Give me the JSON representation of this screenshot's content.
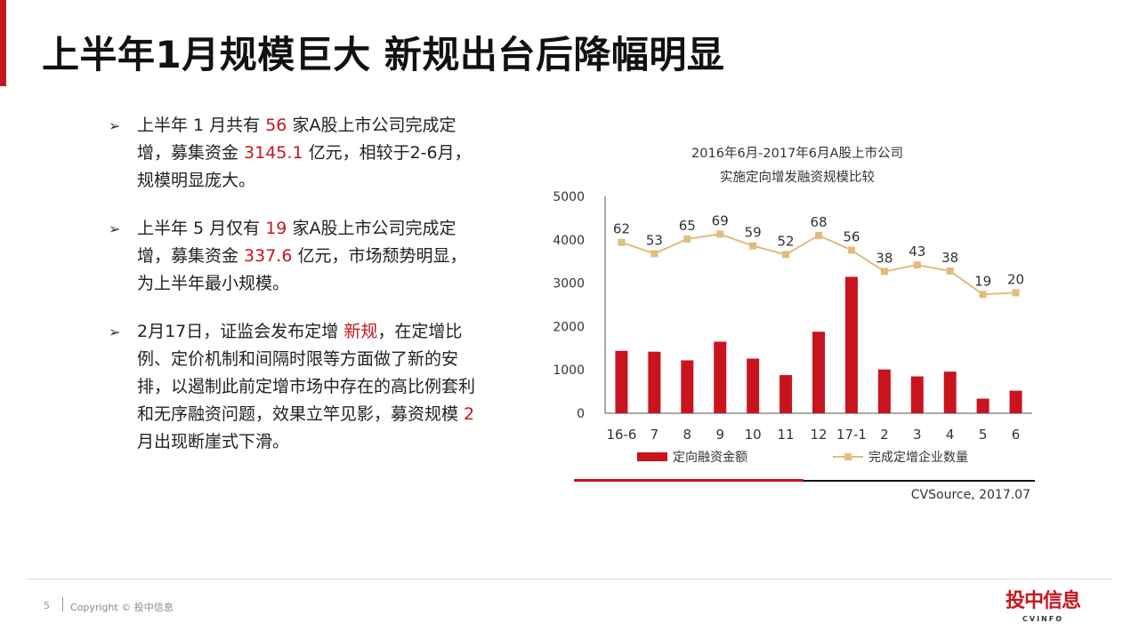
{
  "page": {
    "title": "上半年1月规模巨大 新规出台后降幅明显",
    "accent_color": "#c9141e"
  },
  "bullets": [
    {
      "parts": [
        {
          "text": "上半年 1 月共有 ",
          "hl": false
        },
        {
          "text": "56",
          "hl": true
        },
        {
          "text": " 家A股上市公司完成定增，募集资金 ",
          "hl": false
        },
        {
          "text": "3145.1",
          "hl": true
        },
        {
          "text": " 亿元，相较于2-6月，规模明显庞大。",
          "hl": false
        }
      ]
    },
    {
      "parts": [
        {
          "text": "上半年 5 月仅有 ",
          "hl": false
        },
        {
          "text": "19",
          "hl": true
        },
        {
          "text": " 家A股上市公司完成定增，募集资金 ",
          "hl": false
        },
        {
          "text": "337.6",
          "hl": true
        },
        {
          "text": " 亿元，市场颓势明显，为上半年最小规模。",
          "hl": false
        }
      ]
    },
    {
      "parts": [
        {
          "text": "2月17日，证监会发布定增 ",
          "hl": false
        },
        {
          "text": "新规",
          "hl": true
        },
        {
          "text": "，在定增比例、定价机制和间隔时限等方面做了新的安排，以遏制此前定增市场中存在的高比例套利和无序融资问题，效果立竿见影，募资规模 ",
          "hl": false
        },
        {
          "text": "2",
          "hl": true
        },
        {
          "text": " 月出现断崖式下滑。",
          "hl": false
        }
      ]
    }
  ],
  "chart_data": {
    "type": "bar",
    "title": "2016年6月-2017年6月A股上市公司",
    "subtitle": "实施定向增发融资规模比较",
    "categories": [
      "16-6",
      "7",
      "8",
      "9",
      "10",
      "11",
      "12",
      "17-1",
      "2",
      "3",
      "4",
      "5",
      "6"
    ],
    "y_ticks": [
      "0",
      "1000",
      "2000",
      "3000",
      "4000",
      "5000"
    ],
    "ylim": [
      0,
      5000
    ],
    "series": [
      {
        "name": "定向融资金额",
        "kind": "bar",
        "color": "#c9141e",
        "values": [
          1440,
          1420,
          1220,
          1650,
          1260,
          880,
          1880,
          3145.1,
          1010,
          850,
          960,
          337.6,
          520
        ]
      },
      {
        "name": "完成定增企业数量",
        "kind": "line",
        "color": "#e3bb7a",
        "values": [
          62,
          53,
          65,
          69,
          59,
          52,
          68,
          56,
          38,
          43,
          38,
          19,
          20
        ],
        "plot_values": [
          3940,
          3680,
          4020,
          4130,
          3860,
          3660,
          4100,
          3760,
          3270,
          3420,
          3280,
          2740,
          2780
        ]
      }
    ],
    "legend_position": "bottom",
    "grid": false
  },
  "source": "CVSource, 2017.07",
  "footer": {
    "page_number": "5",
    "copyright": "Copyright © 投中信息"
  },
  "logo": {
    "main": "投中信息",
    "sub": "CVINFO"
  }
}
